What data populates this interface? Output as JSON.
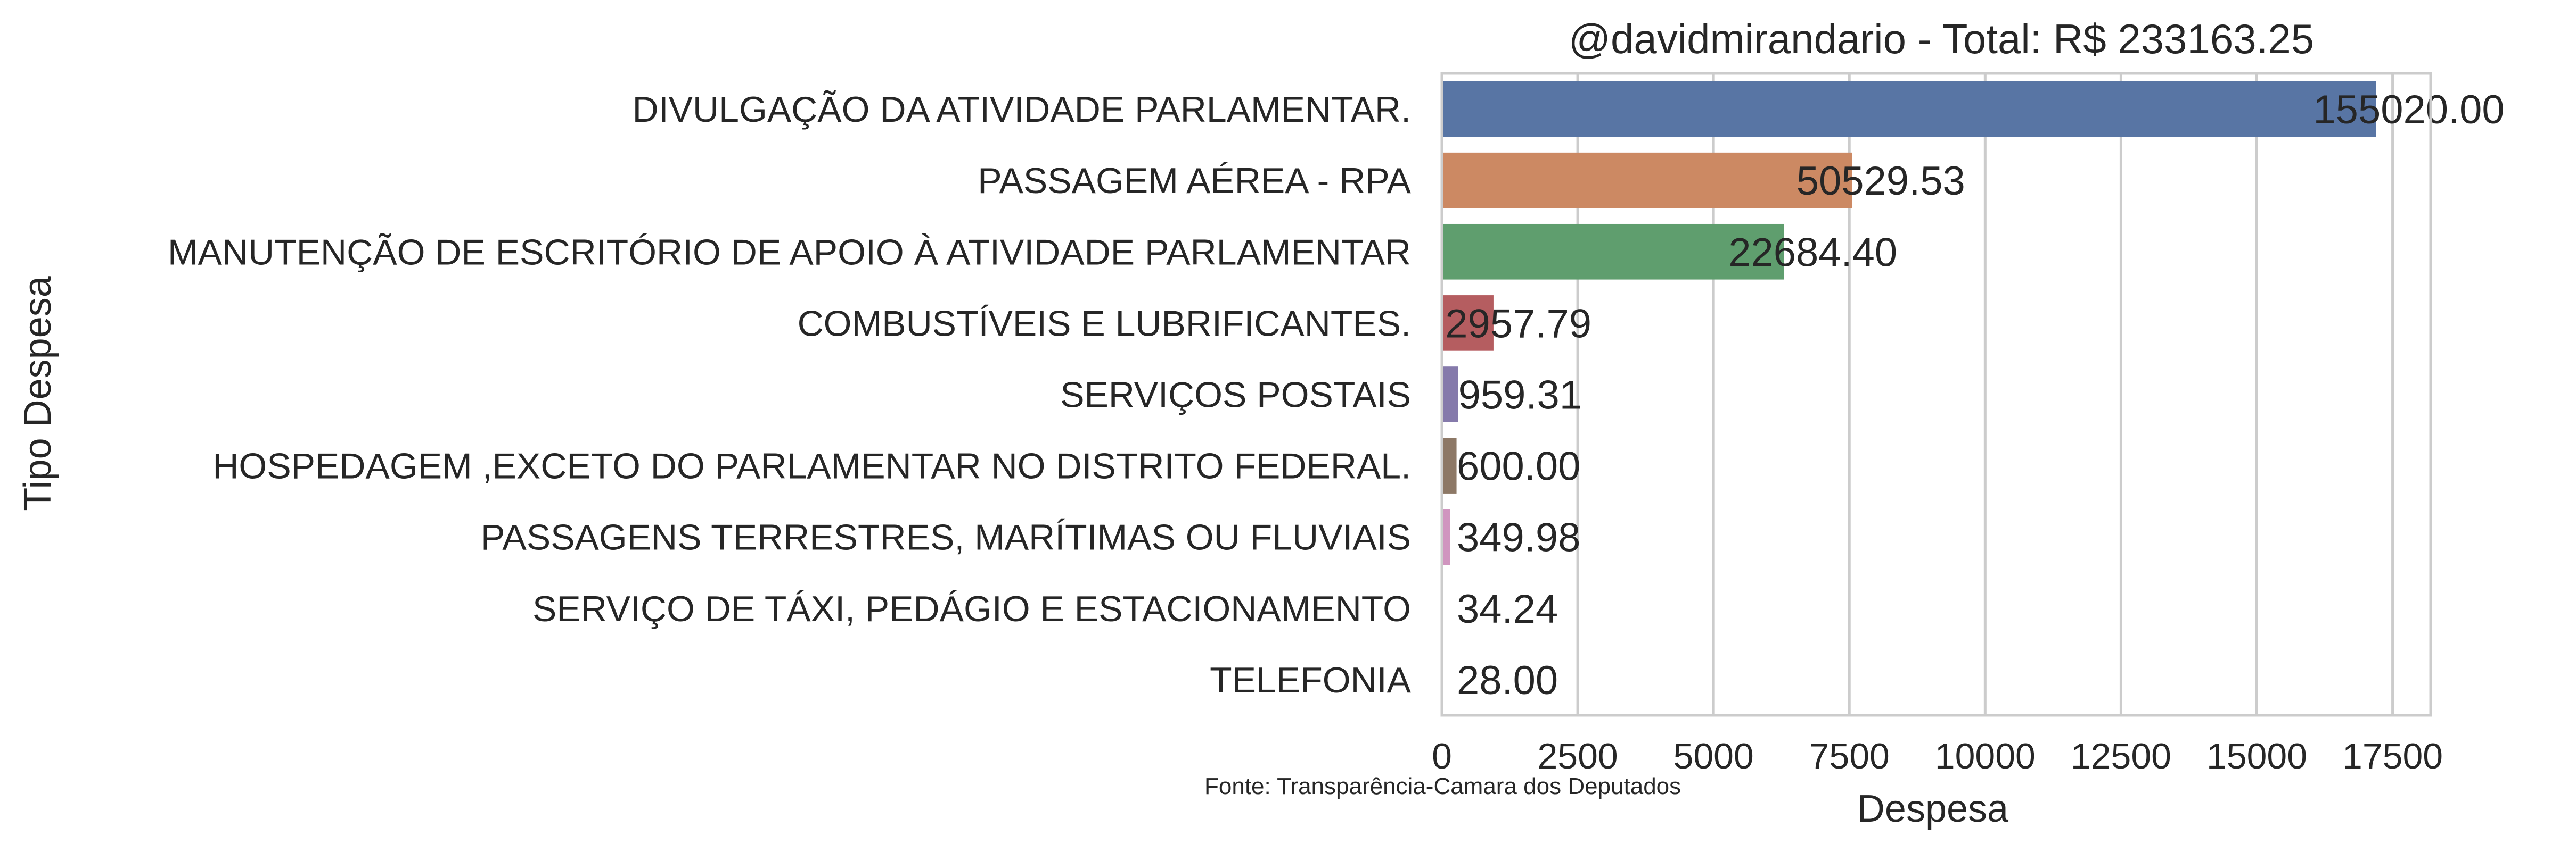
{
  "chart_data": {
    "type": "bar",
    "orientation": "horizontal",
    "title": "@davidmirandario - Total: R$ 233163.25",
    "xlabel": "Despesa",
    "ylabel": "Tipo Despesa",
    "xlim": [
      0,
      18200
    ],
    "xticks": [
      0,
      2500,
      5000,
      7500,
      10000,
      12500,
      15000,
      17500
    ],
    "grid": true,
    "source_note": "Fonte: Transparência-Camara dos Deputados",
    "bars": [
      {
        "category": "DIVULGAÇÃO DA ATIVIDADE PARLAMENTAR.",
        "value": 17200,
        "label": "155020.00",
        "color": "#5875a4"
      },
      {
        "category": "PASSAGEM AÉREA - RPA",
        "value": 7550,
        "label": "50529.53",
        "color": "#cc8963"
      },
      {
        "category": "MANUTENÇÃO DE ESCRITÓRIO DE APOIO À ATIVIDADE PARLAMENTAR",
        "value": 6300,
        "label": "22684.40",
        "color": "#5f9e6e"
      },
      {
        "category": "COMBUSTÍVEIS E LUBRIFICANTES.",
        "value": 950,
        "label": "2957.79",
        "color": "#b55d60"
      },
      {
        "category": "SERVIÇOS POSTAIS",
        "value": 300,
        "label": "959.31",
        "color": "#857aab"
      },
      {
        "category": "HOSPEDAGEM ,EXCETO DO PARLAMENTAR NO DISTRITO FEDERAL.",
        "value": 270,
        "label": "600.00",
        "color": "#8d7866"
      },
      {
        "category": "PASSAGENS TERRESTRES, MARÍTIMAS OU FLUVIAIS",
        "value": 150,
        "label": "349.98",
        "color": "#d095bf"
      },
      {
        "category": "SERVIÇO DE TÁXI, PEDÁGIO E ESTACIONAMENTO",
        "value": 15,
        "label": "34.24",
        "color": "#8c8c8c"
      },
      {
        "category": "TELEFONIA",
        "value": 12,
        "label": "28.00",
        "color": "#c1b37f"
      }
    ]
  }
}
